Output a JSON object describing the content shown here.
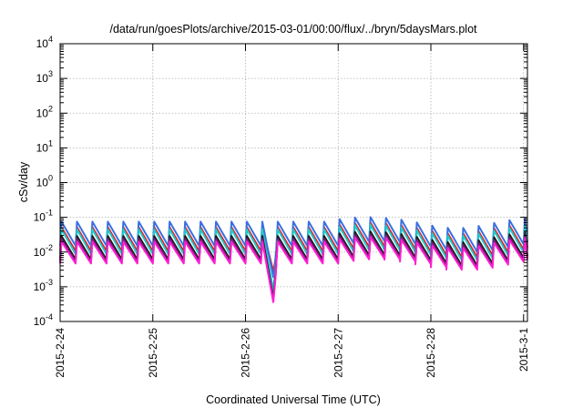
{
  "chart_data": {
    "type": "line",
    "title": "/data/run/goesPlots/archive/2015-03-01/00:00/flux/../bryn/5daysMars.plot",
    "xlabel": "Coordinated Universal Time (UTC)",
    "ylabel": "cSv/day",
    "y_scale": "log",
    "ylim": [
      0.0001,
      10000
    ],
    "xlim": [
      "2015-02-24",
      "2015-03-01 01:00"
    ],
    "grid": true,
    "legend": "none",
    "x_ticks": [
      {
        "label": "2015-2-24",
        "value": "2015-02-24"
      },
      {
        "label": "2015-2-25",
        "value": "2015-02-25"
      },
      {
        "label": "2015-2-26",
        "value": "2015-02-26"
      },
      {
        "label": "2015-2-27",
        "value": "2015-02-27"
      },
      {
        "label": "2015-2-28",
        "value": "2015-02-28"
      },
      {
        "label": "2015-3-1",
        "value": "2015-03-01"
      }
    ],
    "y_ticks": [
      {
        "base": "10",
        "exp": "-4",
        "value": 0.0001
      },
      {
        "base": "10",
        "exp": "-3",
        "value": 0.001
      },
      {
        "base": "10",
        "exp": "-2",
        "value": 0.01
      },
      {
        "base": "10",
        "exp": "-1",
        "value": 0.1
      },
      {
        "base": "10",
        "exp": "0",
        "value": 1
      },
      {
        "base": "10",
        "exp": "1",
        "value": 10
      },
      {
        "base": "10",
        "exp": "2",
        "value": 100
      },
      {
        "base": "10",
        "exp": "3",
        "value": 1000
      },
      {
        "base": "10",
        "exp": "4",
        "value": 10000
      }
    ],
    "series": [
      {
        "color": "#e8191e",
        "peak": 0.052,
        "base": 0.0105,
        "dip": 0.0028
      },
      {
        "color": "#3a6fe0",
        "peak": 0.075,
        "base": 0.015,
        "dip": 0.0019
      },
      {
        "color": "#20c9c9",
        "peak": 0.045,
        "base": 0.0087,
        "dip": 0.00082
      },
      {
        "color": "#1a1a1a",
        "peak": 0.029,
        "base": 0.0061,
        "dip": 0.00048
      },
      {
        "color": "#7a1a7a",
        "peak": 0.024,
        "base": 0.0054,
        "dip": 0.00042
      },
      {
        "color": "#ff1fd2",
        "peak": 0.02,
        "base": 0.0047,
        "dip": 0.00036
      }
    ]
  }
}
